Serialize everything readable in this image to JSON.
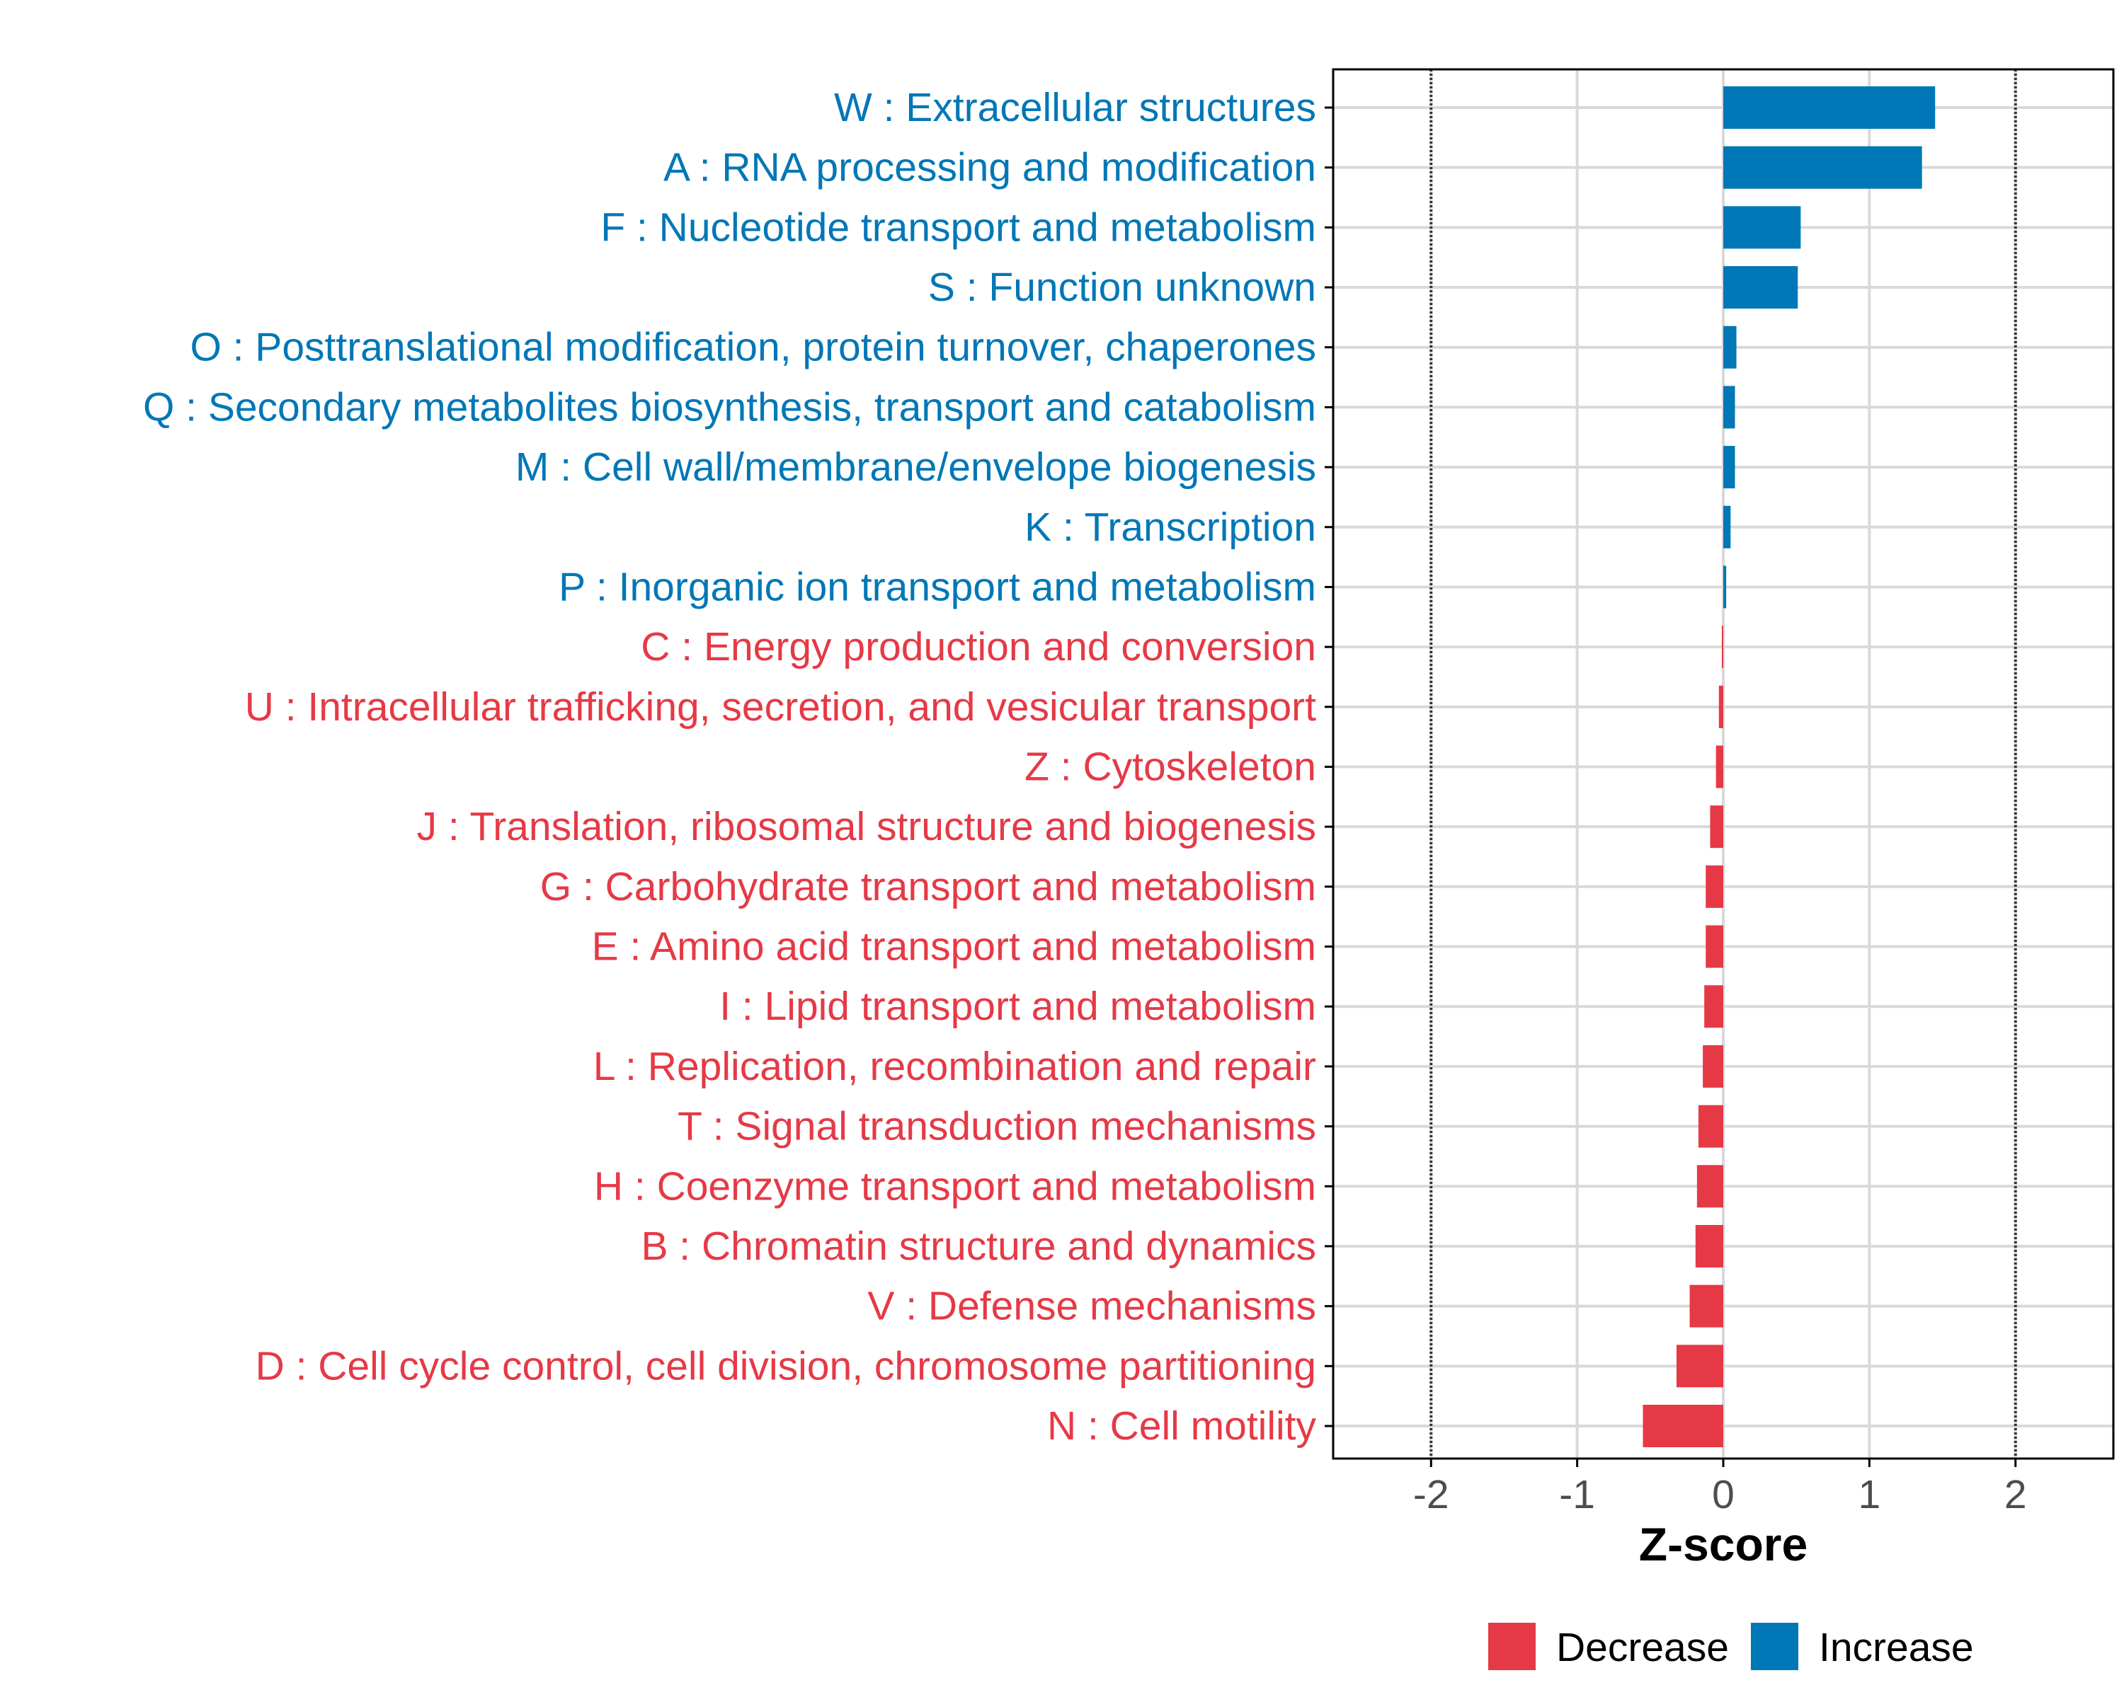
{
  "chart_data": {
    "type": "bar",
    "orientation": "horizontal",
    "xlabel": "Z-score",
    "ylabel": "",
    "xlim": [
      -2.67,
      2.67
    ],
    "xticks": [
      -2,
      -1,
      0,
      1,
      2
    ],
    "xtick_labels": [
      "-2",
      "-1",
      "0",
      "1",
      "2"
    ],
    "reference_lines": [
      -2,
      2
    ],
    "grid": true,
    "categories": [
      "W : Extracellular structures",
      "A : RNA processing and modification",
      "F : Nucleotide transport and metabolism",
      "S : Function unknown",
      "O : Posttranslational modification, protein turnover, chaperones",
      "Q : Secondary metabolites biosynthesis, transport and catabolism",
      "M : Cell wall/membrane/envelope biogenesis",
      "K : Transcription",
      "P : Inorganic ion transport and metabolism",
      "C : Energy production and conversion",
      "U : Intracellular trafficking, secretion, and vesicular transport",
      "Z : Cytoskeleton",
      "J : Translation, ribosomal structure and biogenesis",
      "G : Carbohydrate transport and metabolism",
      "E : Amino acid transport and metabolism",
      "I : Lipid transport and metabolism",
      "L : Replication, recombination and repair",
      "T : Signal transduction mechanisms",
      "H : Coenzyme transport and metabolism",
      "B : Chromatin structure and dynamics",
      "V : Defense mechanisms",
      "D : Cell cycle control, cell division, chromosome partitioning",
      "N : Cell motility"
    ],
    "values": [
      1.45,
      1.36,
      0.53,
      0.51,
      0.09,
      0.08,
      0.08,
      0.05,
      0.02,
      -0.01,
      -0.03,
      -0.05,
      -0.09,
      -0.12,
      -0.12,
      -0.13,
      -0.14,
      -0.17,
      -0.18,
      -0.19,
      -0.23,
      -0.32,
      -0.55
    ],
    "groups": [
      "Increase",
      "Increase",
      "Increase",
      "Increase",
      "Increase",
      "Increase",
      "Increase",
      "Increase",
      "Increase",
      "Decrease",
      "Decrease",
      "Decrease",
      "Decrease",
      "Decrease",
      "Decrease",
      "Decrease",
      "Decrease",
      "Decrease",
      "Decrease",
      "Decrease",
      "Decrease",
      "Decrease",
      "Decrease"
    ],
    "legend": {
      "placement": "bottom",
      "entries": [
        {
          "label": "Decrease",
          "color": "#E63946"
        },
        {
          "label": "Increase",
          "color": "#0077B6"
        }
      ]
    },
    "colors": {
      "Decrease": "#E63946",
      "Increase": "#0077B6",
      "grid": "#d9d9d9",
      "reference": "#333333",
      "axis": "#000000"
    }
  }
}
